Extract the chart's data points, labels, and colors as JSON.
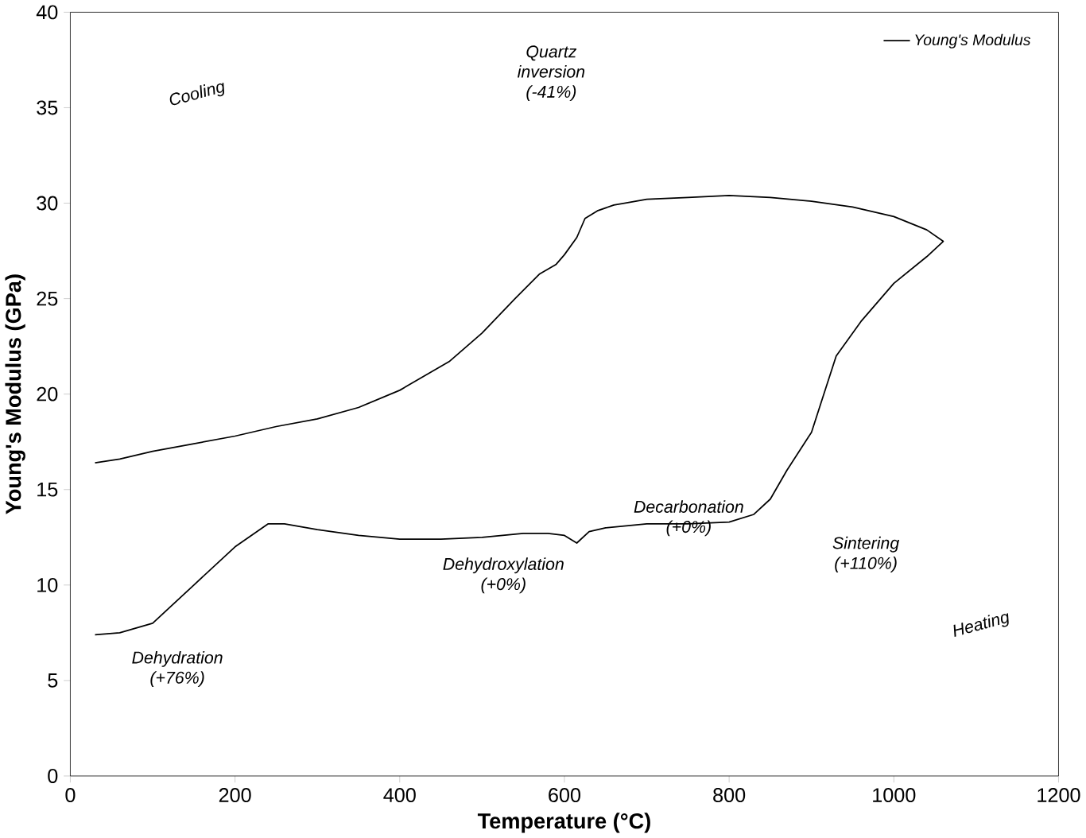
{
  "chart_data": {
    "type": "line",
    "xlabel": "Temperature (°C)",
    "ylabel": "Young's Modulus (GPa)",
    "x": [
      30,
      60,
      100,
      150,
      200,
      240,
      260,
      300,
      350,
      400,
      450,
      500,
      550,
      580,
      600,
      615,
      630,
      650,
      700,
      750,
      800,
      830,
      850,
      870,
      900,
      930,
      960,
      1000,
      1040,
      1060,
      1040,
      1000,
      950,
      900,
      850,
      800,
      750,
      700,
      660,
      640,
      625,
      615,
      600,
      590,
      570,
      540,
      500,
      460,
      400,
      350,
      300,
      250,
      200,
      150,
      100,
      60,
      30
    ],
    "xlim": [
      0,
      1200
    ],
    "ylim": [
      0,
      40
    ],
    "xticks": [
      0,
      200,
      400,
      600,
      800,
      1000,
      1200
    ],
    "yticks": [
      0,
      5,
      10,
      15,
      20,
      25,
      30,
      35,
      40
    ],
    "series": [
      {
        "name": "*Young's Modulus*",
        "color": "#000000",
        "values": [
          7.4,
          7.5,
          8.0,
          10.0,
          12.0,
          13.2,
          13.2,
          12.9,
          12.6,
          12.4,
          12.4,
          12.5,
          12.7,
          12.7,
          12.6,
          12.2,
          12.8,
          13.0,
          13.2,
          13.2,
          13.3,
          13.7,
          14.5,
          16.0,
          18.0,
          22.0,
          23.8,
          25.8,
          27.2,
          28.0,
          28.6,
          29.3,
          29.8,
          30.1,
          30.3,
          30.4,
          30.3,
          30.2,
          29.9,
          29.6,
          29.2,
          28.2,
          27.3,
          26.8,
          26.3,
          25.0,
          23.2,
          21.7,
          20.2,
          19.3,
          18.7,
          18.3,
          17.8,
          17.4,
          17.0,
          16.6,
          16.4
        ]
      }
    ],
    "legend": "top right",
    "line_style": "solid",
    "marker": "none",
    "annotations": [
      "Cooling",
      "Quartz inversion (-41%)",
      "Dehydration (+76%)",
      "Dehydroxylation (+0%)",
      "Decarbonation (+0%)",
      "Sintering (+110%)",
      "Heating"
    ]
  }
}
